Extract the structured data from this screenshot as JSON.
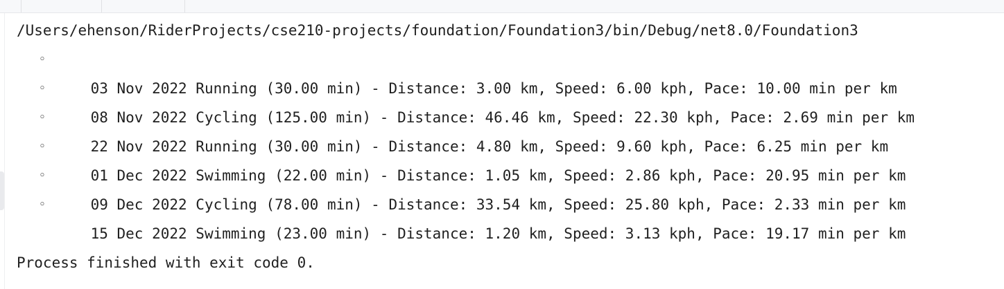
{
  "console": {
    "path": "/Users/ehenson/RiderProjects/cse210-projects/foundation/Foundation3/bin/Debug/net8.0/Foundation3",
    "bullet": "◦",
    "entries": [
      "03 Nov 2022 Running (30.00 min) - Distance: 3.00 km, Speed: 6.00 kph, Pace: 10.00 min per km",
      "08 Nov 2022 Cycling (125.00 min) - Distance: 46.46 km, Speed: 22.30 kph, Pace: 2.69 min per km",
      "22 Nov 2022 Running (30.00 min) - Distance: 4.80 km, Speed: 9.60 kph, Pace: 6.25 min per km",
      "01 Dec 2022 Swimming (22.00 min) - Distance: 1.05 km, Speed: 2.86 kph, Pace: 20.95 min per km",
      "09 Dec 2022 Cycling (78.00 min) - Distance: 33.54 km, Speed: 25.80 kph, Pace: 2.33 min per km",
      "15 Dec 2022 Swimming (23.00 min) - Distance: 1.20 km, Speed: 3.13 kph, Pace: 19.17 min per km"
    ],
    "exit_message": "Process finished with exit code 0."
  }
}
